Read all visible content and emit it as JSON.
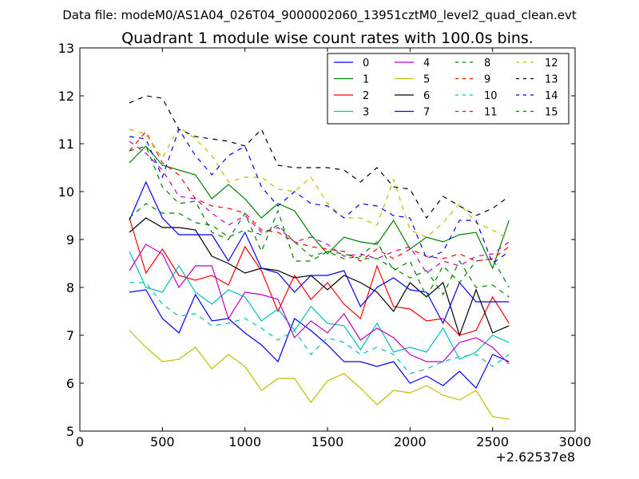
{
  "figure": {
    "suptitle": "Data file: modeM0/AS1A04_026T04_9000002060_13951cztM0_level2_quad_clean.evt"
  },
  "chart_data": {
    "type": "line",
    "title": "Quadrant 1 module wise count rates with 100.0s bins.",
    "xlabel": "",
    "ylabel": "",
    "xlim": [
      0,
      3000
    ],
    "ylim": [
      5,
      13
    ],
    "x_offset_label": "+2.62537e8",
    "xticks": [
      0,
      500,
      1000,
      1500,
      2000,
      2500,
      3000
    ],
    "yticks": [
      5,
      6,
      7,
      8,
      9,
      10,
      11,
      12,
      13
    ],
    "grid": false,
    "legend": {
      "position": "top-right",
      "columns": 4
    },
    "x": [
      300,
      400,
      500,
      600,
      700,
      800,
      900,
      1000,
      1100,
      1200,
      1300,
      1400,
      1500,
      1600,
      1700,
      1800,
      1900,
      2000,
      2100,
      2200,
      2300,
      2400,
      2500,
      2600
    ],
    "series": [
      {
        "name": "0",
        "color": "#0000ff",
        "dash": "solid",
        "values": [
          7.9,
          7.95,
          7.35,
          7.05,
          7.85,
          7.3,
          7.35,
          7.05,
          6.8,
          6.45,
          7.35,
          7.1,
          6.8,
          6.45,
          6.45,
          6.35,
          6.45,
          6.0,
          6.15,
          5.95,
          6.25,
          5.9,
          6.6,
          6.45
        ]
      },
      {
        "name": "1",
        "color": "#008000",
        "dash": "solid",
        "values": [
          10.6,
          10.95,
          10.55,
          10.45,
          10.35,
          9.85,
          10.15,
          9.85,
          9.45,
          9.75,
          9.6,
          9.1,
          8.7,
          9.05,
          8.95,
          8.9,
          9.4,
          8.8,
          9.05,
          8.95,
          9.1,
          9.15,
          8.4,
          9.4
        ]
      },
      {
        "name": "2",
        "color": "#ff0000",
        "dash": "solid",
        "values": [
          9.45,
          8.3,
          8.8,
          8.25,
          8.15,
          8.25,
          8.05,
          8.85,
          8.35,
          7.5,
          8.25,
          7.75,
          8.1,
          7.65,
          7.35,
          8.45,
          7.6,
          7.55,
          7.3,
          7.35,
          7.0,
          7.1,
          7.8,
          7.25
        ]
      },
      {
        "name": "3",
        "color": "#00bfbf",
        "dash": "solid",
        "values": [
          8.75,
          8.0,
          7.9,
          8.45,
          7.9,
          7.65,
          7.95,
          7.8,
          7.3,
          7.55,
          7.1,
          7.6,
          7.25,
          7.2,
          6.7,
          7.25,
          6.65,
          6.75,
          6.65,
          7.15,
          6.5,
          6.65,
          7.0,
          6.85
        ]
      },
      {
        "name": "4",
        "color": "#bf00bf",
        "dash": "solid",
        "values": [
          8.35,
          8.9,
          8.7,
          8.0,
          8.45,
          8.45,
          7.35,
          7.9,
          7.85,
          7.75,
          6.95,
          7.3,
          7.05,
          7.45,
          6.9,
          7.15,
          6.95,
          6.6,
          6.45,
          6.45,
          6.85,
          6.95,
          6.75,
          6.4
        ]
      },
      {
        "name": "5",
        "color": "#bfbf00",
        "dash": "solid",
        "values": [
          7.1,
          6.75,
          6.45,
          6.5,
          6.75,
          6.3,
          6.6,
          6.35,
          5.85,
          6.1,
          6.1,
          5.6,
          6.05,
          6.2,
          5.9,
          5.55,
          5.85,
          5.8,
          5.95,
          5.75,
          5.65,
          5.85,
          5.3,
          5.25
        ]
      },
      {
        "name": "6",
        "color": "#000000",
        "dash": "solid",
        "values": [
          9.15,
          9.45,
          9.25,
          9.25,
          9.2,
          8.65,
          8.5,
          8.3,
          8.4,
          8.35,
          8.2,
          8.25,
          7.95,
          8.25,
          8.1,
          7.9,
          7.5,
          8.1,
          7.8,
          8.1,
          7.0,
          7.95,
          7.05,
          7.2
        ]
      },
      {
        "name": "7",
        "color": "#0000ff",
        "dash": "solid",
        "values": [
          9.4,
          10.2,
          9.45,
          9.1,
          9.1,
          9.1,
          8.55,
          9.15,
          8.4,
          8.3,
          7.9,
          8.25,
          8.25,
          8.35,
          7.6,
          8.0,
          8.2,
          7.95,
          7.9,
          7.25,
          8.1,
          7.7,
          7.7,
          7.7
        ]
      },
      {
        "name": "8",
        "color": "#008000",
        "dash": "dashed",
        "values": [
          10.85,
          10.95,
          10.1,
          9.75,
          9.8,
          9.15,
          9.0,
          9.55,
          8.75,
          9.6,
          8.55,
          8.55,
          8.75,
          8.6,
          8.65,
          8.95,
          8.35,
          8.55,
          7.8,
          8.45,
          8.1,
          8.55,
          8.6,
          8.0
        ]
      },
      {
        "name": "9",
        "color": "#ff0000",
        "dash": "dashed",
        "values": [
          10.85,
          11.25,
          10.6,
          10.35,
          9.85,
          9.7,
          9.65,
          9.55,
          9.2,
          9.15,
          8.95,
          8.85,
          8.8,
          8.75,
          8.55,
          8.8,
          8.6,
          8.8,
          8.65,
          8.6,
          8.7,
          8.55,
          8.6,
          8.85
        ]
      },
      {
        "name": "10",
        "color": "#00bfbf",
        "dash": "dashed",
        "values": [
          8.1,
          8.1,
          7.65,
          7.4,
          7.45,
          7.2,
          7.25,
          7.35,
          7.15,
          6.9,
          7.1,
          6.6,
          6.95,
          6.85,
          6.6,
          6.75,
          6.6,
          6.2,
          6.3,
          6.45,
          6.55,
          6.6,
          6.35,
          6.6
        ]
      },
      {
        "name": "11",
        "color": "#bf00bf",
        "dash": "dashed",
        "values": [
          11.05,
          10.8,
          10.45,
          9.9,
          9.85,
          9.55,
          9.3,
          9.5,
          9.15,
          9.25,
          8.95,
          9.05,
          8.9,
          8.65,
          8.7,
          8.6,
          8.75,
          8.85,
          8.3,
          8.55,
          8.45,
          8.65,
          8.7,
          8.95
        ]
      },
      {
        "name": "12",
        "color": "#bfbf00",
        "dash": "dashed",
        "values": [
          11.3,
          11.2,
          10.7,
          11.35,
          11.1,
          10.75,
          10.2,
          10.3,
          10.3,
          10.05,
          10.0,
          10.3,
          9.75,
          9.45,
          9.45,
          9.3,
          10.25,
          9.2,
          9.05,
          9.35,
          9.75,
          9.35,
          9.2,
          9.0
        ]
      },
      {
        "name": "13",
        "color": "#000000",
        "dash": "dashed",
        "values": [
          11.85,
          12.0,
          11.95,
          11.3,
          11.15,
          11.1,
          11.05,
          10.95,
          11.3,
          10.55,
          10.5,
          10.5,
          10.5,
          10.45,
          10.2,
          10.5,
          10.1,
          10.05,
          9.45,
          9.9,
          9.7,
          9.5,
          9.65,
          9.9
        ]
      },
      {
        "name": "14",
        "color": "#0000ff",
        "dash": "dashed",
        "values": [
          11.15,
          11.1,
          10.3,
          11.3,
          10.75,
          10.35,
          10.75,
          10.95,
          10.1,
          9.7,
          10.0,
          9.75,
          9.7,
          9.45,
          9.75,
          9.7,
          9.5,
          9.45,
          8.6,
          8.75,
          9.4,
          9.4,
          8.5,
          8.75
        ]
      },
      {
        "name": "15",
        "color": "#008000",
        "dash": "dashed",
        "values": [
          9.45,
          9.75,
          9.55,
          9.55,
          9.35,
          9.3,
          9.05,
          9.2,
          9.1,
          9.3,
          8.95,
          8.65,
          8.75,
          8.7,
          8.6,
          8.6,
          8.4,
          8.2,
          8.35,
          7.85,
          8.55,
          8.0,
          8.05,
          7.8
        ]
      }
    ]
  }
}
